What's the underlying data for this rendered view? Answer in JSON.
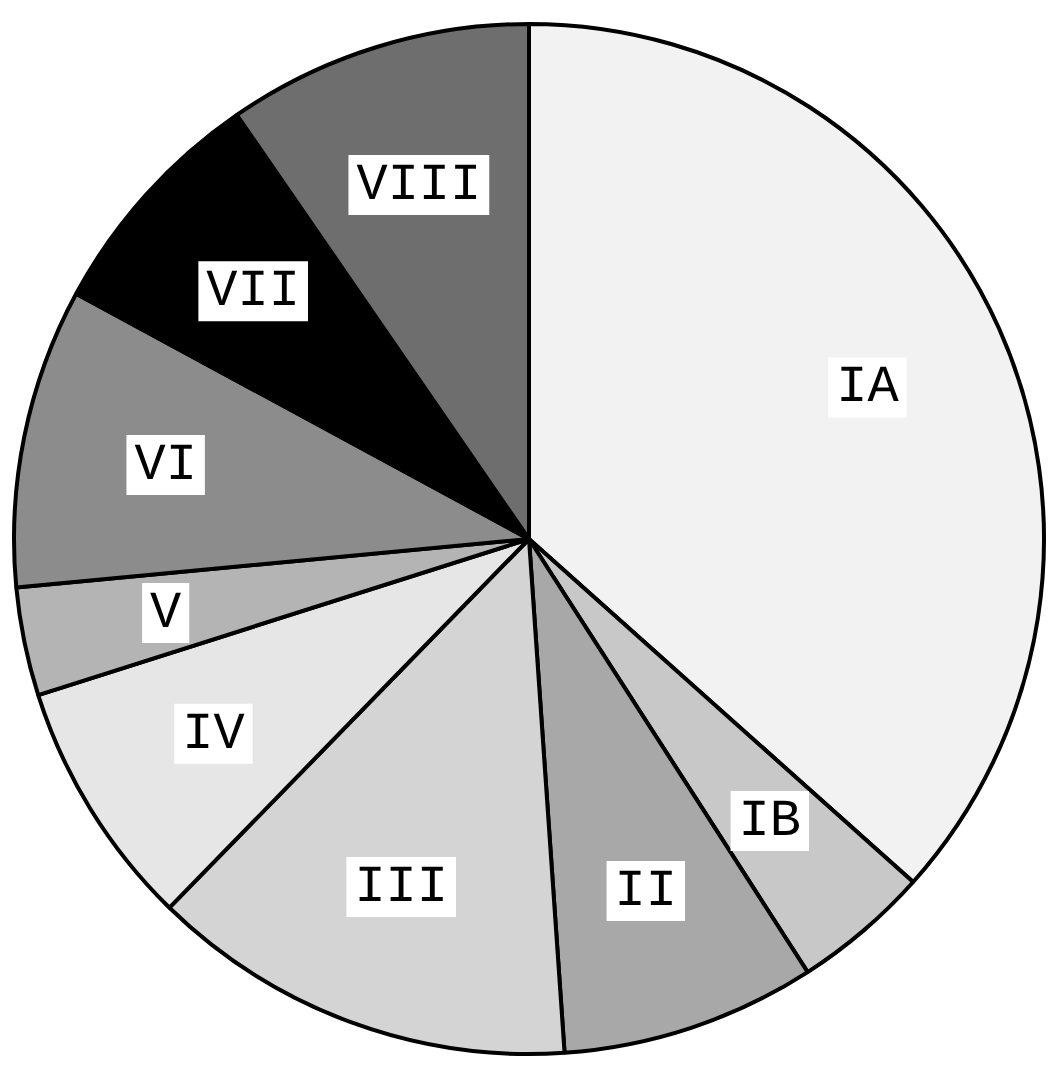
{
  "chart_data": {
    "type": "pie",
    "categories": [
      "IA",
      "IB",
      "II",
      "III",
      "IV",
      "V",
      "VI",
      "VII",
      "VIII"
    ],
    "values": [
      36.6,
      4.3,
      8.0,
      13.4,
      7.8,
      3.4,
      9.4,
      7.5,
      9.6
    ],
    "colors": [
      "#f2f2f2",
      "#c8c8c8",
      "#a8a8a8",
      "#d4d4d4",
      "#e6e6e6",
      "#b4b4b4",
      "#8c8c8c",
      "#000000",
      "#6e6e6e"
    ],
    "legend": false
  }
}
